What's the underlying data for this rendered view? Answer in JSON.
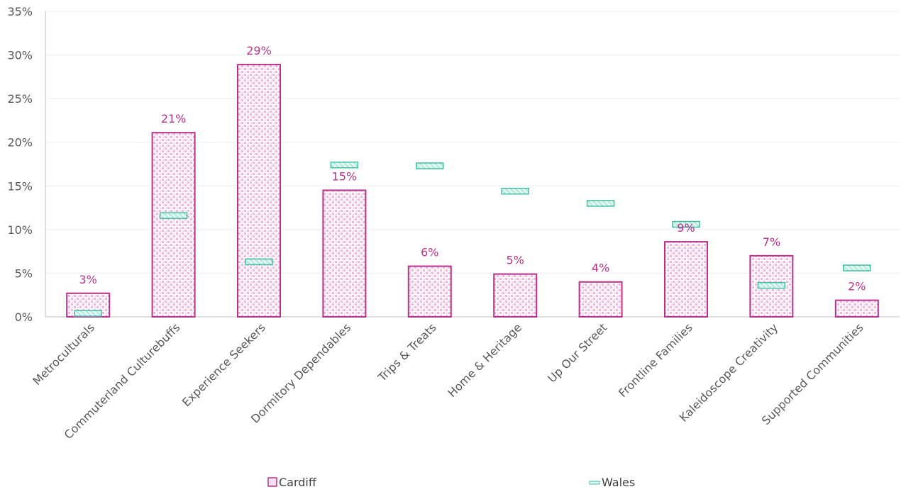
{
  "chart_data": {
    "type": "bar",
    "title": "",
    "xlabel": "",
    "ylabel": "",
    "ylim": [
      0,
      35
    ],
    "yticks": [
      "0%",
      "5%",
      "10%",
      "15%",
      "20%",
      "25%",
      "30%",
      "35%"
    ],
    "grid": true,
    "legend_position": "bottom",
    "categories": [
      "Metroculturals",
      "Commuterland Culturebuffs",
      "Experience Seekers",
      "Dormitory Dependables",
      "Trips & Treats",
      "Home & Heritage",
      "Up Our Street",
      "Frontline Families",
      "Kaleidoscope Creativity",
      "Supported Communities"
    ],
    "series": [
      {
        "name": "Cardiff",
        "mark": "bar",
        "values": [
          2.7,
          21.1,
          28.9,
          14.5,
          5.8,
          4.9,
          4.0,
          8.6,
          7.0,
          1.9
        ],
        "labels": [
          "3%",
          "21%",
          "29%",
          "15%",
          "6%",
          "5%",
          "4%",
          "9%",
          "7%",
          "2%"
        ],
        "color": "#B5338A",
        "fill_color": "#F2C6E4"
      },
      {
        "name": "Wales",
        "mark": "dash",
        "values": [
          0.4,
          11.6,
          6.3,
          17.4,
          17.3,
          14.4,
          13.0,
          10.6,
          3.6,
          5.6
        ],
        "color": "#3FBFA5",
        "fill_color": "#D4F3EC"
      }
    ]
  }
}
